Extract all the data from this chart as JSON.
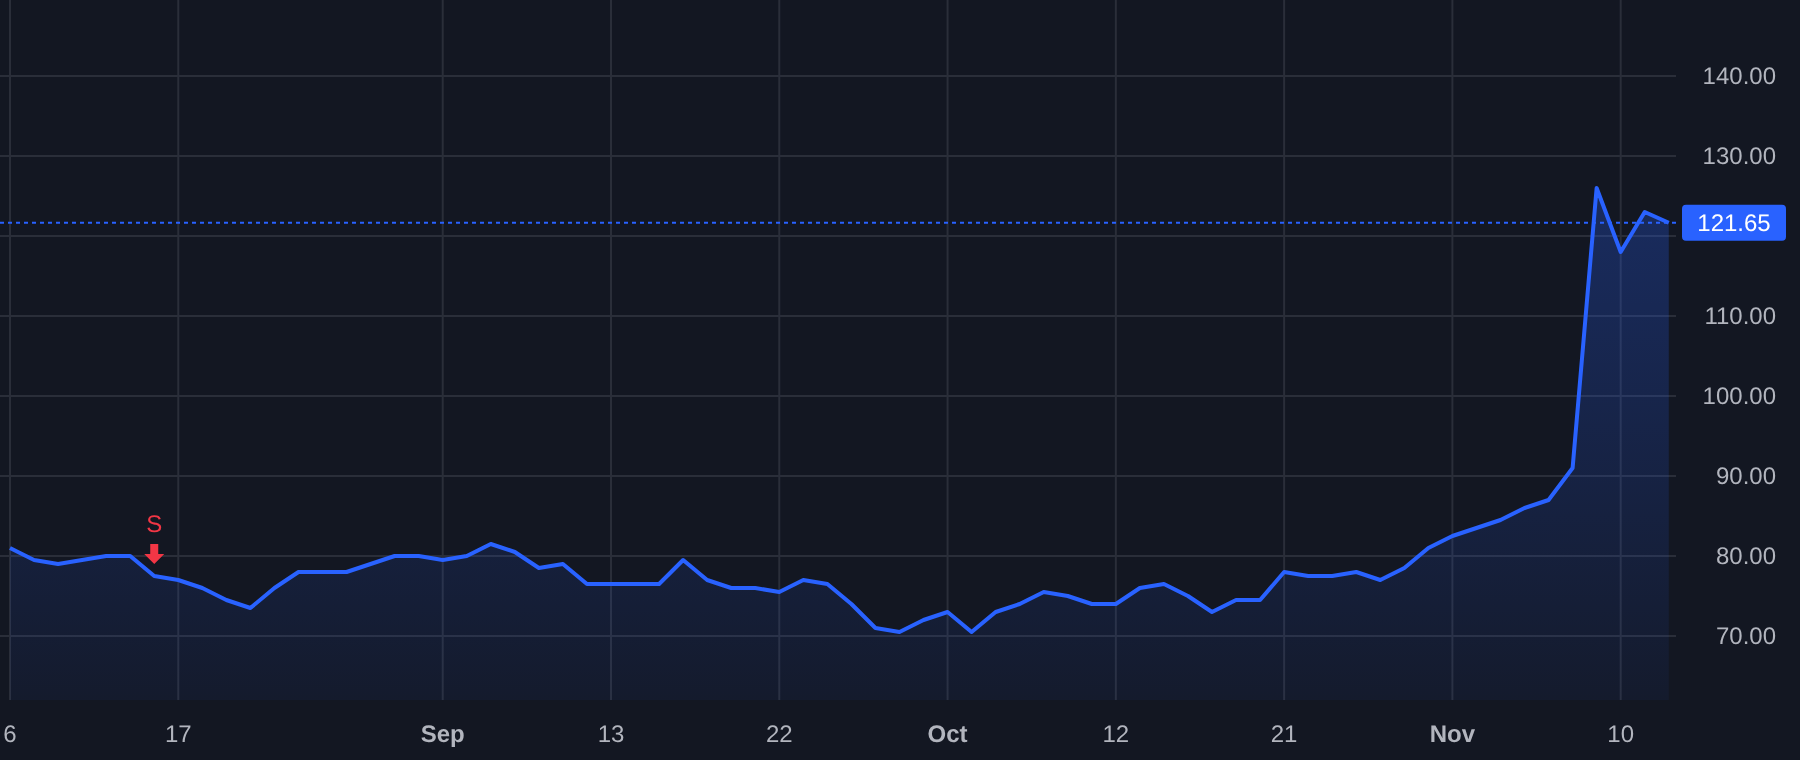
{
  "chart_data": {
    "type": "area",
    "categories": [
      "6",
      null,
      null,
      null,
      null,
      null,
      null,
      "17",
      null,
      null,
      null,
      null,
      null,
      null,
      null,
      null,
      null,
      null,
      "Sep",
      null,
      null,
      null,
      null,
      null,
      null,
      "13",
      null,
      null,
      null,
      null,
      null,
      null,
      "22",
      null,
      null,
      null,
      null,
      null,
      null,
      "Oct",
      null,
      null,
      null,
      null,
      null,
      null,
      "12",
      null,
      null,
      null,
      null,
      null,
      null,
      "21",
      null,
      null,
      null,
      null,
      null,
      null,
      "Nov",
      null,
      null,
      null,
      null,
      null,
      null,
      "10",
      null,
      null
    ],
    "series": [
      {
        "color": "#2962ff",
        "values": [
          81,
          79.5,
          79,
          79.5,
          80,
          80,
          77.5,
          77,
          76,
          74.5,
          73.5,
          76,
          78,
          78,
          78,
          79,
          80,
          80,
          79.5,
          80,
          81.5,
          80.5,
          78.5,
          79,
          76.5,
          76.5,
          76.5,
          76.5,
          79.5,
          77,
          76,
          76,
          75.5,
          77,
          76.5,
          74,
          71,
          70.5,
          72,
          73,
          70.5,
          73,
          74,
          75.5,
          75,
          74,
          74,
          76,
          76.5,
          75,
          73,
          74.5,
          74.5,
          78,
          77.5,
          77.5,
          78,
          77,
          78.5,
          81,
          82.5,
          83.5,
          84.5,
          86,
          87,
          91,
          126,
          118,
          123,
          121.65
        ]
      }
    ],
    "ylim": [
      62,
      149.5
    ],
    "yticks": [
      {
        "value": 70,
        "label": "70.00"
      },
      {
        "value": 80,
        "label": "80.00"
      },
      {
        "value": 90,
        "label": "90.00"
      },
      {
        "value": 100,
        "label": "100.00"
      },
      {
        "value": 110,
        "label": "110.00"
      },
      {
        "value": 120,
        "label": null
      },
      {
        "value": 130,
        "label": "130.00"
      },
      {
        "value": 140,
        "label": "140.00"
      }
    ],
    "grid": true,
    "ref_lines": [
      {
        "axis": "y",
        "value": 121.65,
        "label": "121.65",
        "color": "#2962ff",
        "line_style": "dotted"
      }
    ],
    "annotations": [
      {
        "text": "S",
        "y": 77.5
      }
    ]
  }
}
